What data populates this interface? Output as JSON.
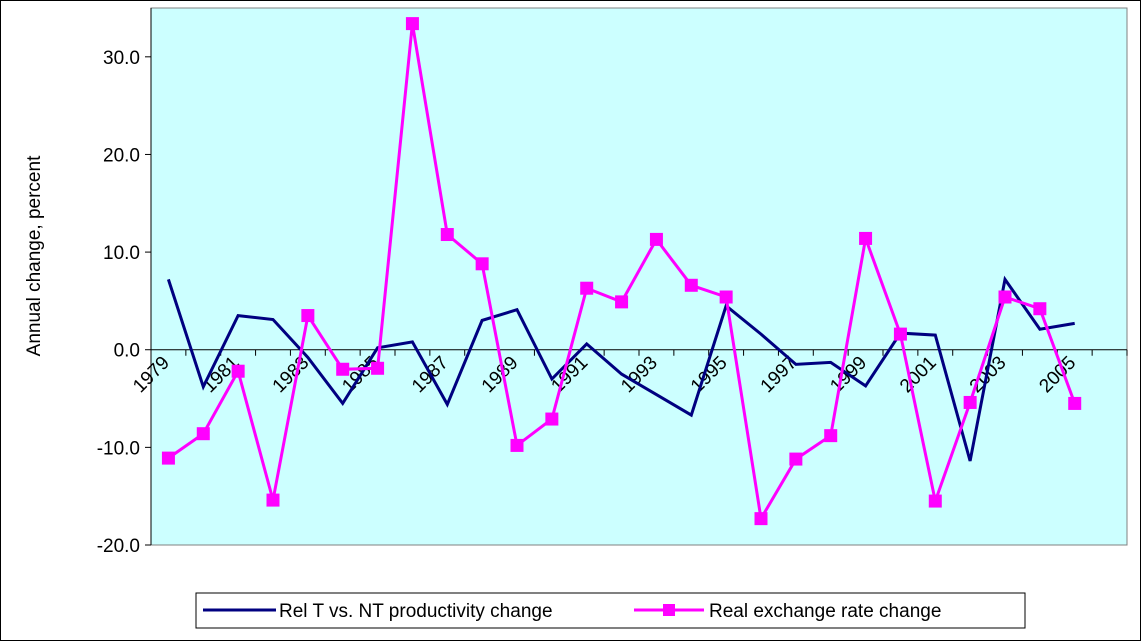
{
  "chart_data": {
    "type": "line",
    "ylabel": "Annual change, percent",
    "xlabel": "",
    "ylim": [
      -20,
      35
    ],
    "yticks": [
      -20,
      -10,
      0,
      10,
      20,
      30
    ],
    "ytick_labels": [
      "-20.0",
      "-10.0",
      "0.0",
      "10.0",
      "20.0",
      "30.0"
    ],
    "x": [
      1979,
      1980,
      1981,
      1982,
      1983,
      1984,
      1985,
      1986,
      1987,
      1988,
      1989,
      1990,
      1991,
      1992,
      1993,
      1994,
      1995,
      1996,
      1997,
      1998,
      1999,
      2000,
      2001,
      2002,
      2003,
      2004,
      2005,
      2006
    ],
    "xtick_labels": [
      "1979",
      "1981",
      "1983",
      "1985",
      "1987",
      "1989",
      "1991",
      "1993",
      "1995",
      "1997",
      "1999",
      "2001",
      "2003",
      "2005"
    ],
    "plot_background": "#ccffff",
    "legend_position": "bottom",
    "series": [
      {
        "name": "Rel T vs. NT productivity change",
        "color": "#000080",
        "marker": "none",
        "values": [
          7.2,
          -3.8,
          3.5,
          3.1,
          -0.8,
          -5.5,
          0.2,
          0.8,
          -5.6,
          3.0,
          4.1,
          -3.0,
          0.6,
          -2.5,
          -4.6,
          -6.7,
          4.5,
          1.6,
          -1.5,
          -1.3,
          -3.7,
          1.7,
          1.5,
          -11.4,
          7.2,
          2.1,
          2.7,
          null
        ]
      },
      {
        "name": "Real exchange rate change",
        "color": "#ff00ff",
        "marker": "square",
        "values": [
          -11.1,
          -8.6,
          -2.2,
          -15.4,
          3.5,
          -2.0,
          -1.9,
          33.4,
          11.8,
          8.8,
          -9.8,
          -7.1,
          6.3,
          4.9,
          11.3,
          6.6,
          5.4,
          -17.3,
          -11.2,
          -8.8,
          11.4,
          1.6,
          -15.5,
          -5.4,
          5.4,
          4.2,
          -5.5,
          null
        ]
      }
    ]
  }
}
